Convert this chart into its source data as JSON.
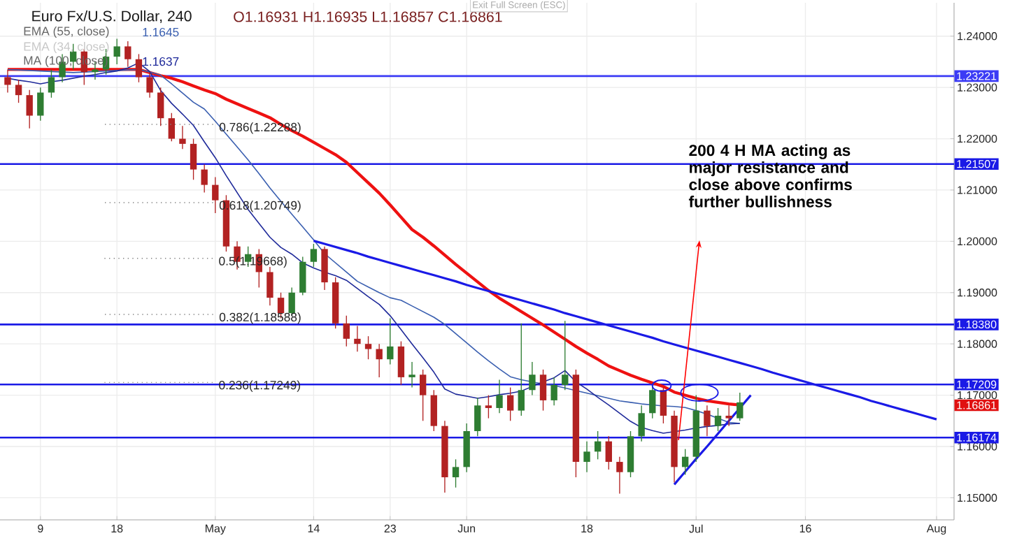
{
  "chart_data": {
    "type": "candlestick",
    "title": "Euro Fx/U.S. Dollar, 240",
    "annotations": [
      "O1.16931 H1.16935 L1.16857 C1.16861",
      "EMA (55, close)",
      "1.1645",
      "EMA (34, close)",
      "MA (100, close)",
      "1.1637",
      "Exit Full Screen (ESC)",
      "0.786(1.22288)",
      "0.618(1.20749)",
      {
        "text": "0.5(1.19668)",
        "y": 1.19668
      },
      "0.382(1.18588)",
      {
        "text": "0.236(1.17249)",
        "y": 1.17249
      },
      "200 4 H MA acting as major resistance and close above confirms further bullishness",
      "1.16861"
    ],
    "categories": [
      null,
      null,
      null,
      "9",
      null,
      null,
      null,
      null,
      null,
      null,
      "18",
      null,
      null,
      null,
      null,
      null,
      null,
      null,
      null,
      "May",
      null,
      null,
      null,
      null,
      null,
      null,
      null,
      null,
      "14",
      null,
      null,
      null,
      null,
      null,
      null,
      "23",
      null,
      null,
      null,
      null,
      null,
      null,
      "Jun",
      null,
      null,
      null,
      null,
      null,
      null,
      null,
      null,
      null,
      null,
      "18",
      null,
      null,
      null,
      null,
      null,
      null,
      null,
      null,
      null,
      "Jul",
      null,
      null,
      null,
      null,
      null,
      null,
      null,
      null,
      null,
      "16",
      null,
      null,
      null,
      null,
      null,
      null,
      null,
      null,
      null,
      null,
      null,
      "Aug"
    ],
    "ohlc": [
      [
        1.232,
        1.2335,
        1.229,
        1.2305
      ],
      [
        1.2305,
        1.2315,
        1.227,
        1.2285
      ],
      [
        1.2285,
        1.2295,
        1.222,
        1.2245
      ],
      [
        1.2245,
        1.23,
        1.2235,
        1.229
      ],
      [
        1.229,
        1.2335,
        1.228,
        1.232
      ],
      [
        1.232,
        1.2365,
        1.231,
        1.235
      ],
      [
        1.235,
        1.2385,
        1.2335,
        1.237
      ],
      [
        1.237,
        1.2375,
        1.2305,
        1.233
      ],
      [
        1.233,
        1.235,
        1.2315,
        1.2335
      ],
      [
        1.2335,
        1.2375,
        1.2325,
        1.236
      ],
      [
        1.236,
        1.2395,
        1.2345,
        1.238
      ],
      [
        1.238,
        1.239,
        1.234,
        1.2355
      ],
      [
        1.2355,
        1.2365,
        1.231,
        1.232
      ],
      [
        1.232,
        1.233,
        1.228,
        1.229
      ],
      [
        1.229,
        1.23,
        1.2225,
        1.224
      ],
      [
        1.224,
        1.225,
        1.2195,
        1.22
      ],
      [
        1.22,
        1.2225,
        1.218,
        1.219
      ],
      [
        1.219,
        1.22,
        1.212,
        1.214
      ],
      [
        1.214,
        1.215,
        1.2095,
        1.211
      ],
      [
        1.211,
        1.2125,
        1.2055,
        1.208
      ],
      [
        1.208,
        1.209,
        1.198,
        1.199
      ],
      [
        1.199,
        1.2,
        1.1945,
        1.196
      ],
      [
        1.196,
        1.199,
        1.195,
        1.1975
      ],
      [
        1.1975,
        1.1985,
        1.191,
        1.194
      ],
      [
        1.194,
        1.195,
        1.1875,
        1.189
      ],
      [
        1.189,
        1.19,
        1.185,
        1.186
      ],
      [
        1.186,
        1.191,
        1.1855,
        1.19
      ],
      [
        1.19,
        1.197,
        1.1895,
        1.196
      ],
      [
        1.196,
        1.1995,
        1.195,
        1.1985
      ],
      [
        1.1985,
        1.199,
        1.1905,
        1.192
      ],
      [
        1.192,
        1.193,
        1.183,
        1.184
      ],
      [
        1.184,
        1.1855,
        1.1795,
        1.181
      ],
      [
        1.181,
        1.1835,
        1.1785,
        1.18
      ],
      [
        1.18,
        1.1815,
        1.177,
        1.179
      ],
      [
        1.179,
        1.18,
        1.1735,
        1.177
      ],
      [
        1.177,
        1.185,
        1.176,
        1.1795
      ],
      [
        1.1795,
        1.1805,
        1.172,
        1.1735
      ],
      [
        1.1735,
        1.1765,
        1.1715,
        1.174
      ],
      [
        1.174,
        1.175,
        1.165,
        1.17
      ],
      [
        1.17,
        1.171,
        1.163,
        1.164
      ],
      [
        1.164,
        1.165,
        1.151,
        1.154
      ],
      [
        1.154,
        1.1575,
        1.152,
        1.156
      ],
      [
        1.156,
        1.1645,
        1.155,
        1.163
      ],
      [
        1.163,
        1.1695,
        1.162,
        1.168
      ],
      [
        1.168,
        1.17,
        1.1655,
        1.1675
      ],
      [
        1.1675,
        1.173,
        1.1665,
        1.17
      ],
      [
        1.17,
        1.1715,
        1.165,
        1.167
      ],
      [
        1.167,
        1.184,
        1.166,
        1.171
      ],
      [
        1.171,
        1.1765,
        1.17,
        1.174
      ],
      [
        1.174,
        1.175,
        1.167,
        1.169
      ],
      [
        1.169,
        1.1735,
        1.168,
        1.172
      ],
      [
        1.172,
        1.1845,
        1.171,
        1.174
      ],
      [
        1.174,
        1.175,
        1.154,
        1.157
      ],
      [
        1.157,
        1.161,
        1.155,
        1.159
      ],
      [
        1.159,
        1.163,
        1.1575,
        1.161
      ],
      [
        1.161,
        1.162,
        1.1555,
        1.157
      ],
      [
        1.157,
        1.158,
        1.1508,
        1.155
      ],
      [
        1.155,
        1.163,
        1.154,
        1.162
      ],
      [
        1.162,
        1.168,
        1.161,
        1.1665
      ],
      [
        1.1665,
        1.1722,
        1.1655,
        1.171
      ],
      [
        1.171,
        1.1715,
        1.1645,
        1.166
      ],
      [
        1.166,
        1.167,
        1.153,
        1.156
      ],
      [
        1.156,
        1.1595,
        1.1545,
        1.158
      ],
      [
        1.158,
        1.17,
        1.157,
        1.167
      ],
      [
        1.167,
        1.168,
        1.162,
        1.164
      ],
      [
        1.164,
        1.1675,
        1.163,
        1.166
      ],
      [
        1.166,
        1.168,
        1.164,
        1.1655
      ],
      [
        1.1655,
        1.1705,
        1.165,
        1.16861
      ],
      null,
      null,
      null,
      null,
      null,
      null,
      null,
      null,
      null,
      null,
      null,
      null,
      null,
      null,
      null,
      null,
      null,
      null
    ],
    "colors": [
      "#b22222",
      "#b22222",
      "#b22222",
      "#2e7d32",
      "#2e7d32",
      "#2e7d32",
      "#2e7d32",
      "#b22222",
      "#2e7d32",
      "#2e7d32",
      "#2e7d32",
      "#b22222",
      "#b22222",
      "#b22222",
      "#b22222",
      "#b22222",
      "#b22222",
      "#b22222",
      "#b22222",
      "#b22222",
      "#b22222",
      "#b22222",
      "#2e7d32",
      "#b22222",
      "#b22222",
      "#b22222",
      "#2e7d32",
      "#2e7d32",
      "#2e7d32",
      "#b22222",
      "#b22222",
      "#b22222",
      "#b22222",
      "#b22222",
      "#b22222",
      "#2e7d32",
      "#b22222",
      "#2e7d32",
      "#b22222",
      "#b22222",
      "#b22222",
      "#2e7d32",
      "#2e7d32",
      "#2e7d32",
      "#b22222",
      "#2e7d32",
      "#b22222",
      "#2e7d32",
      "#2e7d32",
      "#b22222",
      "#2e7d32",
      "#2e7d32",
      "#b22222",
      "#2e7d32",
      "#2e7d32",
      "#b22222",
      "#b22222",
      "#2e7d32",
      "#2e7d32",
      "#2e7d32",
      "#b22222",
      "#b22222",
      "#2e7d32",
      "#2e7d32",
      "#b22222",
      "#2e7d32",
      "#b22222",
      "#2e7d32",
      null,
      null,
      null,
      null,
      null,
      null,
      null,
      null,
      null,
      null,
      null,
      null,
      null,
      null,
      null,
      null,
      null,
      null
    ],
    "series": [
      {
        "type": "line",
        "color": "#ee1111",
        "values": [
          1.2335,
          1.2335,
          1.2335,
          1.2335,
          1.2335,
          1.2335,
          1.2335,
          1.2335,
          1.2335,
          1.2335,
          1.2335,
          1.2335,
          1.2335,
          1.2329,
          1.2323,
          1.2318,
          1.2311,
          1.2303,
          1.2295,
          1.2288,
          1.2277,
          1.2268,
          1.2259,
          1.225,
          1.2241,
          1.2228,
          1.2216,
          1.2205,
          1.2193,
          1.2181,
          1.2169,
          1.2154,
          1.2134,
          1.2114,
          1.2094,
          1.2071,
          1.2047,
          1.2023,
          1.2008,
          1.1991,
          1.1973,
          1.1955,
          1.1938,
          1.1921,
          1.1904,
          1.1889,
          1.1876,
          1.1863,
          1.185,
          1.1837,
          1.1823,
          1.1809,
          1.1795,
          1.1782,
          1.177,
          1.1757,
          1.1748,
          1.1739,
          1.1731,
          1.1724,
          1.1717,
          1.1706,
          1.17,
          1.1694,
          1.1689,
          1.1686,
          1.1683,
          1.1681,
          null,
          null,
          null,
          null,
          null,
          null,
          null,
          null,
          null,
          null,
          null,
          null,
          null,
          null,
          null,
          null,
          null,
          null
        ]
      },
      {
        "type": "line",
        "color": "#3a5fb0",
        "values": [
          1.2335,
          1.2334,
          1.2333,
          1.2332,
          1.2331,
          1.233,
          1.2329,
          1.233,
          1.2331,
          1.2332,
          1.2333,
          1.2334,
          1.2335,
          1.233,
          1.2324,
          1.2307,
          1.2289,
          1.2271,
          1.2258,
          1.2234,
          1.2209,
          1.2184,
          1.2159,
          1.2132,
          1.2104,
          1.2078,
          1.2053,
          1.2028,
          1.2003,
          1.1976,
          1.1958,
          1.194,
          1.1922,
          1.1911,
          1.19,
          1.189,
          1.1885,
          1.1874,
          1.1863,
          1.1852,
          1.1838,
          1.182,
          1.1802,
          1.1784,
          1.1767,
          1.1751,
          1.1736,
          1.173,
          1.1726,
          1.1722,
          1.1719,
          1.1714,
          1.1709,
          1.1704,
          1.1699,
          1.1694,
          1.1689,
          1.1686,
          1.1683,
          1.1681,
          1.1679,
          1.1678,
          1.1676,
          1.167,
          1.1663,
          1.1655,
          1.1647,
          1.1645,
          null,
          null,
          null,
          null,
          null,
          null,
          null,
          null,
          null,
          null,
          null,
          null,
          null,
          null,
          null,
          null,
          null,
          null
        ]
      },
      {
        "type": "line",
        "color": "#1f2a9a",
        "values": [
          1.2318,
          1.2314,
          1.2311,
          1.2307,
          1.2311,
          1.2314,
          1.2318,
          1.2322,
          1.2325,
          1.2329,
          1.2332,
          1.2338,
          1.2348,
          1.2331,
          1.2294,
          1.2269,
          1.2248,
          1.2226,
          1.2194,
          1.2163,
          1.2128,
          1.2095,
          1.2062,
          1.2035,
          1.2008,
          1.1988,
          1.1975,
          1.1958,
          1.1948,
          1.194,
          1.1933,
          1.1924,
          1.1908,
          1.1892,
          1.1877,
          1.1855,
          1.1828,
          1.18,
          1.1773,
          1.1745,
          1.1712,
          1.1702,
          1.1698,
          1.1694,
          1.1697,
          1.1701,
          1.1704,
          1.1708,
          1.1717,
          1.1726,
          1.1734,
          1.1748,
          1.1726,
          1.1712,
          1.1696,
          1.1681,
          1.1665,
          1.1649,
          1.1637,
          1.1631,
          1.1626,
          1.1629,
          1.1632,
          1.1636,
          1.1639,
          1.1641,
          1.1644,
          1.1645,
          null,
          null,
          null,
          null,
          null,
          null,
          null,
          null,
          null,
          null,
          null,
          null,
          null,
          null,
          null,
          null,
          null,
          null
        ]
      },
      {
        "type": "line",
        "color": "#1a1ae6",
        "values": [
          null,
          null,
          null,
          null,
          null,
          null,
          null,
          null,
          null,
          null,
          null,
          null,
          null,
          null,
          null,
          null,
          null,
          null,
          null,
          null,
          null,
          null,
          null,
          null,
          null,
          null,
          null,
          null,
          1.2001,
          1.1995,
          1.1989,
          1.1983,
          1.1977,
          1.197,
          1.1964,
          1.1958,
          1.1952,
          1.1946,
          1.194,
          1.1934,
          1.1928,
          1.1922,
          1.1915,
          1.1909,
          1.1903,
          1.1897,
          1.1891,
          1.1885,
          1.1879,
          1.1873,
          1.1867,
          1.186,
          1.1854,
          1.1848,
          1.1842,
          1.1836,
          1.183,
          1.1824,
          1.1818,
          1.1812,
          1.1805,
          1.1799,
          1.1793,
          1.1787,
          1.1781,
          1.1775,
          1.1769,
          1.1763,
          1.1757,
          1.1751,
          1.1744,
          1.1738,
          1.1732,
          1.1726,
          1.172,
          1.1714,
          1.1708,
          1.1702,
          1.1696,
          1.1689,
          1.1683,
          1.1677,
          1.1671,
          1.1665,
          1.1659,
          1.1653
        ]
      },
      {
        "type": "line",
        "color": "#1a1ae6",
        "values": [
          null,
          null,
          null,
          null,
          null,
          null,
          null,
          null,
          null,
          null,
          null,
          null,
          null,
          null,
          null,
          null,
          null,
          null,
          null,
          null,
          null,
          null,
          null,
          null,
          null,
          null,
          null,
          null,
          null,
          null,
          null,
          null,
          null,
          null,
          null,
          null,
          null,
          null,
          null,
          null,
          null,
          null,
          null,
          null,
          null,
          null,
          null,
          null,
          null,
          null,
          null,
          null,
          null,
          null,
          null,
          null,
          null,
          null,
          null,
          null,
          null,
          1.1526,
          1.1551,
          1.1576,
          1.16,
          1.1625,
          1.165,
          1.1675,
          1.17,
          null,
          null,
          null,
          null,
          null,
          null,
          null,
          null,
          null,
          null,
          null,
          null,
          null,
          null,
          null,
          null,
          null
        ]
      }
    ],
    "ref_lines": [
      {
        "axis": "y",
        "value": 1.23221,
        "label": "1.23221",
        "color": "#3b3bf5"
      },
      {
        "axis": "y",
        "value": 1.21507,
        "label": "1.21507",
        "color": "#1a1ae6"
      },
      {
        "axis": "y",
        "value": 1.1838,
        "label": "1.18380",
        "color": "#1a1ae6"
      },
      {
        "axis": "y",
        "value": 1.17209,
        "label": "1.17209",
        "color": "#1a1ae6"
      },
      {
        "axis": "y",
        "value": 1.16174,
        "label": "1.16174",
        "color": "#1a1ae6"
      }
    ],
    "ylim": [
      1.1457,
      1.2465
    ],
    "yticks": [
      {
        "value": 1.15,
        "label": "1.15000"
      },
      {
        "value": 1.16,
        "label": "1.16000"
      },
      {
        "value": 1.17,
        "label": "1.17000"
      },
      {
        "value": 1.18,
        "label": "1.18000"
      },
      {
        "value": 1.19,
        "label": "1.19000"
      },
      {
        "value": 1.2,
        "label": "1.20000"
      },
      {
        "value": 1.21,
        "label": "1.21000"
      },
      {
        "value": 1.22,
        "label": "1.22000"
      },
      {
        "value": 1.23,
        "label": "1.23000"
      },
      {
        "value": 1.24,
        "label": "1.24000"
      }
    ],
    "grid": true
  }
}
